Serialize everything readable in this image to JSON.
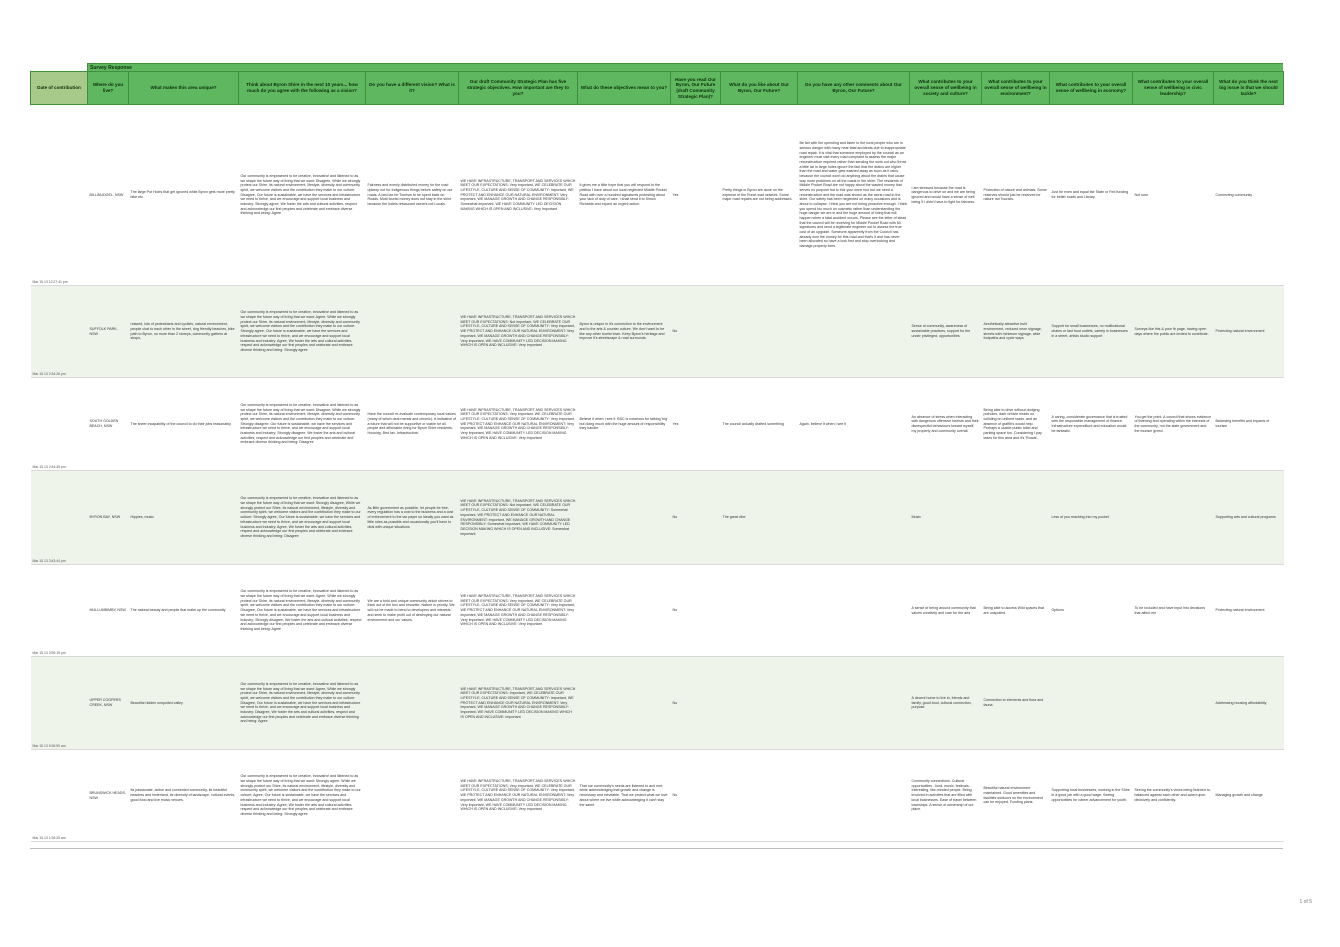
{
  "group_header": "Survey Response",
  "columns": [
    "Date of contribution",
    "Where do you live?",
    "What makes this area unique?",
    "Think about Byron Shire in the next 10 years... how much do you agree with the following as a vision?",
    "Do you have a different vision? What is it?",
    "Our draft Community Strategic Plan has five strategic objectives. How important are they to you?",
    "What do these objectives mean to you?",
    "Have you read Our Byron, Our Future (draft Community Strategic Plan)?",
    "What do you like about Our Byron, Our Future?",
    "Do you have any other comments about Our Byron, Our Future?",
    "What contributes to your overall sense of wellbeing in society and culture?",
    "What contributes to your overall sense of wellbeing in environment?",
    "What contributes to your overall sense of wellbeing in economy?",
    "What contributes to your overall sense of wellbeing in civic leadership?",
    "What do you think the next big issue is that we should tackle?"
  ],
  "rows": [
    {
      "date": "Mar 15 13 12:27:41 pm",
      "live": "BILLINUDGEL, NSW",
      "unique": "The large Pot Holes that get ignored while Byron gets more pretty bike etc.",
      "vision": "Our community is empowered to be creative, innovative and listened to as we shape the future way of living that we want: Disagree, While we strongly protect our Shire, its natural environment, lifestyle, diversity and community spirit, we welcome visitors and the contribution they make to our culture: Disagree, Our future is sustainable, we have the services and infrastructure we need to thrive, and we encourage and support local business and industry: Strongly agree, We foster the arts and cultural activities, respect and acknowledge our first peoples and celebrate and embrace diverse thinking and being: Agree",
      "different": "Fairness and evenly distributed money for the road upkeep not for Indigenous things before safety on our roads. A bed tax for Tourism to be spent back on Roads. Most tourist money does not stay in the shire because the hotels restaurant owners not Locals.",
      "objectives": "WE HAVE INFRASTRUCTURE, TRANSPORT AND SERVICES WHICH MEET OUR EXPECTATIONS: Very important, WE CELEBRATE OUR LIFESTYLE, CULTURE AND SENSE OF COMMUNITY: Important, WE PROTECT AND ENHANCE OUR NATURAL ENVIRONMENT: Very important, WE MANAGE GROWTH AND CHANGE RESPONSIBLY: Somewhat important, WE HAVE COMMUNITY LED DECISION MAKING WHICH IS OPEN AND INCLUSIVE: Very important",
      "mean": "It gives me a little hope that you will respond to the petition I have about our local neglected Middle Pocket Road with over a hundred signatures protesting about your lack of duty of care. I shall send it to Simon Richards and expect an urgent action.",
      "read": "Yes",
      "like": "Pretty things in Byron are done on the expense of the Rural road network. Some major road repairs are not being addressed.",
      "comments": "Be fair with the spending and listen to the rural people who are in serious danger with many near fatal accidents due to inappropriate road repair. It is vital that someone employed by the council as an engineer must visit every road complaint to assess the major reconstruction required rather than sending the work out who throw a little tar in large holes ignore the fact that the drains are higher than the road and water gets washed away as soon as it rains because the council won't do anything about the drains that cause way more problems on all the roads in the shire. The residents of Middle Pocket Road are not happy about the wasted money that serves no purpose but to tick your done box but we need a reconstruction and the road was shown as the worst road in the shire. Our safety has been neglected on many occasions and is about to collapse. I think you are not being proactive enough. I think you spend too much on cosmetic rather than understanding the huge danger we are in and the huge amount of living that will happen when a fatal accident occurs. Please see the letter of ideas that the council will be receiving for Middle Pocket Road with 60 signatures and send a legitimate engineer out to assess the true cost of an upgrade. Someone apparently from the Council has already won the money for this road and that's it and has never been allocated so have a look first and stop overlooking and damage property fixes.",
      "society": "I am stressed because the road is dangerous to drive on and we are being ignored and would have a sense of well being if I didn't have to fight for fairness.",
      "environment": "Protection of nature and animals. Some reserves should just be reserved for nature not Tourists.",
      "economy": "Just be even and equal fair State or Fed funding for better roads and Library.",
      "civic": "Not sure",
      "issue": "Connecting community"
    },
    {
      "date": "Mar 15 13 2:34:26 pm",
      "live": "SUFFOLK PARK, NSW",
      "unique": "relaxed, lots of pedestrians and cyclists, natural environment, people chat to each other in the street, dog friendly beaches, bike path to Byron, no more than 2 storeys, community gathers at shops,",
      "vision": "Our community is empowered to be creative, innovative and listened to as we shape the future way of living that we want: Agree, While we strongly protect our Shire, its natural environment, lifestyle, diversity and community spirit, we welcome visitors and the contribution they make to our culture: Strongly agree, Our future is sustainable, we have the services and infrastructure we need to thrive, and we encourage and support local business and industry: Agree, We foster the arts and cultural activities, respect and acknowledge our first peoples and celebrate and embrace diverse thinking and being: Strongly agree",
      "different": "",
      "objectives": "WE HAVE INFRASTRUCTURE, TRANSPORT AND SERVICES WHICH MEET OUR EXPECTATIONS: Not important, WE CELEBRATE OUR LIFESTYLE, CULTURE AND SENSE OF COMMUNITY: Very important, WE PROTECT AND ENHANCE OUR NATURAL ENVIRONMENT: Very important, WE MANAGE GROWTH AND CHANGE RESPONSIBLY: Very important, WE HAVE COMMUNITY LED DECISION MAKING WHICH IS OPEN AND INCLUSIVE: Very important",
      "mean": "Byron is unique in it's connection to the environment and to the arts & counter culture. We don't want to be like any other tourist town. Keep Byron's heritage and improve it's streetscape & rural surrounds.",
      "read": "No",
      "like": "",
      "comments": "",
      "society": "Sense of community, awareness of sustainable practices, support for the under privileged, opportunities",
      "environment": "Aesthetically attractive built environment, reduced neon signage, streets with minimum signage, wide footpaths and cycle ways",
      "economy": "Support for small businesses, no multinational chains or fast food outlets, variety in businesses in a street, artists studio support",
      "civic": "Surveys like this & your fb page, having open days where the public are invited to contribute.",
      "issue": "Protecting natural environment"
    },
    {
      "date": "Mar 15 13 2:44:45 pm",
      "live": "SOUTH GOLDEN BEACH, NSW",
      "unique": "The sheer incapability of the council to do their jobs reasonably.",
      "vision": "Our community is empowered to be creative, innovative and listened to as we shape the future way of living that we want: Disagree, While we strongly protect our Shire, its natural environment, lifestyle, diversity and community spirit, we welcome visitors and the contribution they make to our culture: Strongly disagree, Our future is sustainable, we have the services and infrastructure we need to thrive, and we encourage and support local business and industry: Strongly disagree, We foster the arts and cultural activities, respect and acknowledge our first peoples and celebrate and embrace diverse thinking and being: Disagree",
      "different": "Have the council re-evaluate contemporary local values (many of which deal mental and chronic). A indicative of a future that will not be supportive or viable for all people and affordable living for Byron Shire residents. Housing. Bed tax. Infrastructure.",
      "objectives": "WE HAVE INFRASTRUCTURE, TRANSPORT AND SERVICES WHICH MEET OUR EXPECTATIONS: Very important, WE CELEBRATE OUR LIFESTYLE, CULTURE AND SENSE OF COMMUNITY: Very important, WE PROTECT AND ENHANCE OUR NATURAL ENVIRONMENT: Very important, WE MANAGE GROWTH AND CHANGE RESPONSIBLY: Very important, WE HAVE COMMUNITY LED DECISION MAKING WHICH IS OPEN AND INCLUSIVE: Very important",
      "mean": "Believe it when I see it. BSC is notorious for talking 'big' but doing much with the huge amount of responsibility they handle.",
      "read": "Yes",
      "like": "The council actually drafted something",
      "comments": "Again, believe it when I see it",
      "society": "An absence of stress when interacting with dangerous offensive tourists and their disrespectful behaviours toward myself, my property and community overall.",
      "environment": "Being able to drive without dodging potholes, dark vehicle heads on colliding on unlined roads, and an absence of graffiti's would help. Perhaps a usable public toilet and parking space too. Considering I pay taxes for this area and it's 'Roads'.",
      "economy": "A caring, considerate governance that is trusted with the responsible management of finance. Infrastructure expenditure and education would be fantastic.",
      "civic": "You get the point. A council that shows evidence of listening and operating within the interests of the community, not the state government and the tourism greed.",
      "issue": "Balancing benefits and impacts of tourism"
    },
    {
      "date": "Mar 15 13 3:43:44 pm",
      "live": "BYRON BAY, NSW",
      "unique": "Hippies, music",
      "vision": "Our community is empowered to be creative, innovative and listened to as we shape the future way of living that we want: Strongly disagree, While we strongly protect our Shire, its natural environment, lifestyle, diversity and community spirit, we welcome visitors and the contribution they make to our culture: Strongly agree, Our future is sustainable, we have the services and infrastructure we need to thrive, and we encourage and support local business and industry: Agree, We foster the arts and cultural activities, respect and acknowledge our first peoples and celebrate and embrace diverse thinking and being: Disagree",
      "different": "As little government as possible, let people be free, every regulation has a cost to the business and a cost of enforcement to the tax payer so ideally you want as little rules as possible and occasionally you'll have to deal with unique situations",
      "objectives": "WE HAVE INFRASTRUCTURE, TRANSPORT AND SERVICES WHICH MEET OUR EXPECTATIONS: Not important, WE CELEBRATE OUR LIFESTYLE, CULTURE AND SENSE OF COMMUNITY: Somewhat important, WE PROTECT AND ENHANCE OUR NATURAL ENVIRONMENT: Important, WE MANAGE GROWTH AND CHANGE RESPONSIBLY: Somewhat important, WE HAVE COMMUNITY LED DECISION MAKING WHICH IS OPEN AND INCLUSIVE: Somewhat important",
      "mean": "",
      "read": "No",
      "like": "The great vibe",
      "comments": "",
      "society": "Music",
      "environment": "",
      "economy": "Less of you reaching into my pocket",
      "civic": "",
      "issue": "Supporting arts and cultural programs"
    },
    {
      "date": "Mar 15 13 3:59:15 pm",
      "live": "MULLUMBIMBY, NSW",
      "unique": "The natural beauty and people that make up the community",
      "vision": "Our community is empowered to be creative, innovative and listened to as we shape the future way of living that we want: Agree, While we strongly protect our Shire, its natural environment, lifestyle, diversity and community spirit, we welcome visitors and the contribution they make to our culture: Disagree, Our future is sustainable, we have the services and infrastructure we need to thrive, and we encourage and support local business and industry: Strongly disagree, We foster the arts and cultural activities, respect and acknowledge our first peoples and celebrate and embrace diverse thinking and being: Agree",
      "different": "We are a bold and unique community which strives to think out of the box and innovate. Nature is priority. We will not be made to bend to developers and interests and seek to make profit out of destroying our natural environment and our values.",
      "objectives": "WE HAVE INFRASTRUCTURE, TRANSPORT AND SERVICES WHICH MEET OUR EXPECTATIONS: Very important, WE CELEBRATE OUR LIFESTYLE, CULTURE AND SENSE OF COMMUNITY: Very important, WE PROTECT AND ENHANCE OUR NATURAL ENVIRONMENT: Very important, WE MANAGE GROWTH AND CHANGE RESPONSIBLY: Very important, WE HAVE COMMUNITY LED DECISION MAKING WHICH IS OPEN AND INCLUSIVE: Very important",
      "mean": "",
      "read": "No",
      "like": "",
      "comments": "",
      "society": "A sense of being around community that values creativity and care for the arts",
      "environment": "Being able to access Wild spaces that are unspoiled",
      "economy": "Options",
      "civic": "To be included and have input into decisions that affect me",
      "issue": "Protecting natural environment"
    },
    {
      "date": "Mar 15 13 9:26:50 am",
      "live": "UPPER COOPERS CREEK, NSW",
      "unique": "Beautiful hidden unspoiled valley",
      "vision": "Our community is empowered to be creative, innovative and listened to as we shape the future way of living that we want: Agree, While we strongly protect our Shire, its natural environment, lifestyle, diversity and community spirit, we welcome visitors and the contribution they make to our culture: Disagree, Our future is sustainable, we have the services and infrastructure we need to thrive, and we encourage and support local business and industry: Disagree, We foster the arts and cultural activities, respect and acknowledge our first peoples and celebrate and embrace diverse thinking and being: Agree",
      "different": "",
      "objectives": "WE HAVE INFRASTRUCTURE, TRANSPORT AND SERVICES WHICH MEET OUR EXPECTATIONS: Important, WE CELEBRATE OUR LIFESTYLE, CULTURE AND SENSE OF COMMUNITY: Important, WE PROTECT AND ENHANCE OUR NATURAL ENVIRONMENT: Very important, WE MANAGE GROWTH AND CHANGE RESPONSIBLY: Important, WE HAVE COMMUNITY LED DECISION MAKING WHICH IS OPEN AND INCLUSIVE: Important",
      "mean": "",
      "read": "No",
      "like": "",
      "comments": "",
      "society": "A decent home to live in, friends and family, good food, cultural connection, purpose",
      "environment": "Connection to elements and flora and fauna",
      "economy": "",
      "civic": "",
      "issue": "Addressing housing affordability"
    },
    {
      "date": "Mar 15 13 1:26:25 am",
      "live": "BRUNSWICK HEADS, NSW",
      "unique": "Its passionate, active and connected community, its beautiful beaches and hinterland, its diversity of landscape, cultural events, good food and live music venues.",
      "vision": "Our community is empowered to be creative, innovative and listened to as we shape the future way of living that we want: Strongly agree, While we strongly protect our Shire, its natural environment, lifestyle, diversity and community spirit, we welcome visitors and the contribution they make to our culture: Agree, Our future is sustainable, we have the services and infrastructure we need to thrive, and we encourage and support local business and industry: Agree, We foster the arts and cultural activities, respect and acknowledge our first peoples and celebrate and embrace diverse thinking and being: Strongly agree",
      "different": "",
      "objectives": "WE HAVE INFRASTRUCTURE, TRANSPORT AND SERVICES WHICH MEET OUR EXPECTATIONS: Very important, WE CELEBRATE OUR LIFESTYLE, CULTURE AND SENSE OF COMMUNITY: Very important, WE PROTECT AND ENHANCE OUR NATURAL ENVIRONMENT: Very important, WE MANAGE GROWTH AND CHANGE RESPONSIBLY: Very important, WE HAVE COMMUNITY LED DECISION MAKING WHICH IS OPEN AND INCLUSIVE: Very important",
      "mean": "That our community's needs are listened to and met, while acknowledging that growth and change is necessary and inevitable. That we protect what we love about where we live while acknowledging it can't stay the same.",
      "read": "No",
      "like": "",
      "comments": "",
      "society": "Community connections. Cultural opportunities - food, music, festivals. Interesting, like-minded people. Being involved in activities that are filled with local businesses. Ease of travel between townships. A sense of ownership of our place.",
      "environment": "Beautiful natural environment maintained. Good amenities and facilities outdoors so the environment can be enjoyed. Funding plans.",
      "economy": "Supporting local businesses, working in the Shire in a good job with a good wage. Seeing opportunities for career advancement for youth.",
      "civic": "Seeing the community's views being listened to, balanced against each other and acted upon decisively and confidently.",
      "issue": "Managing growth and change"
    }
  ],
  "page_number": "1 of 5"
}
